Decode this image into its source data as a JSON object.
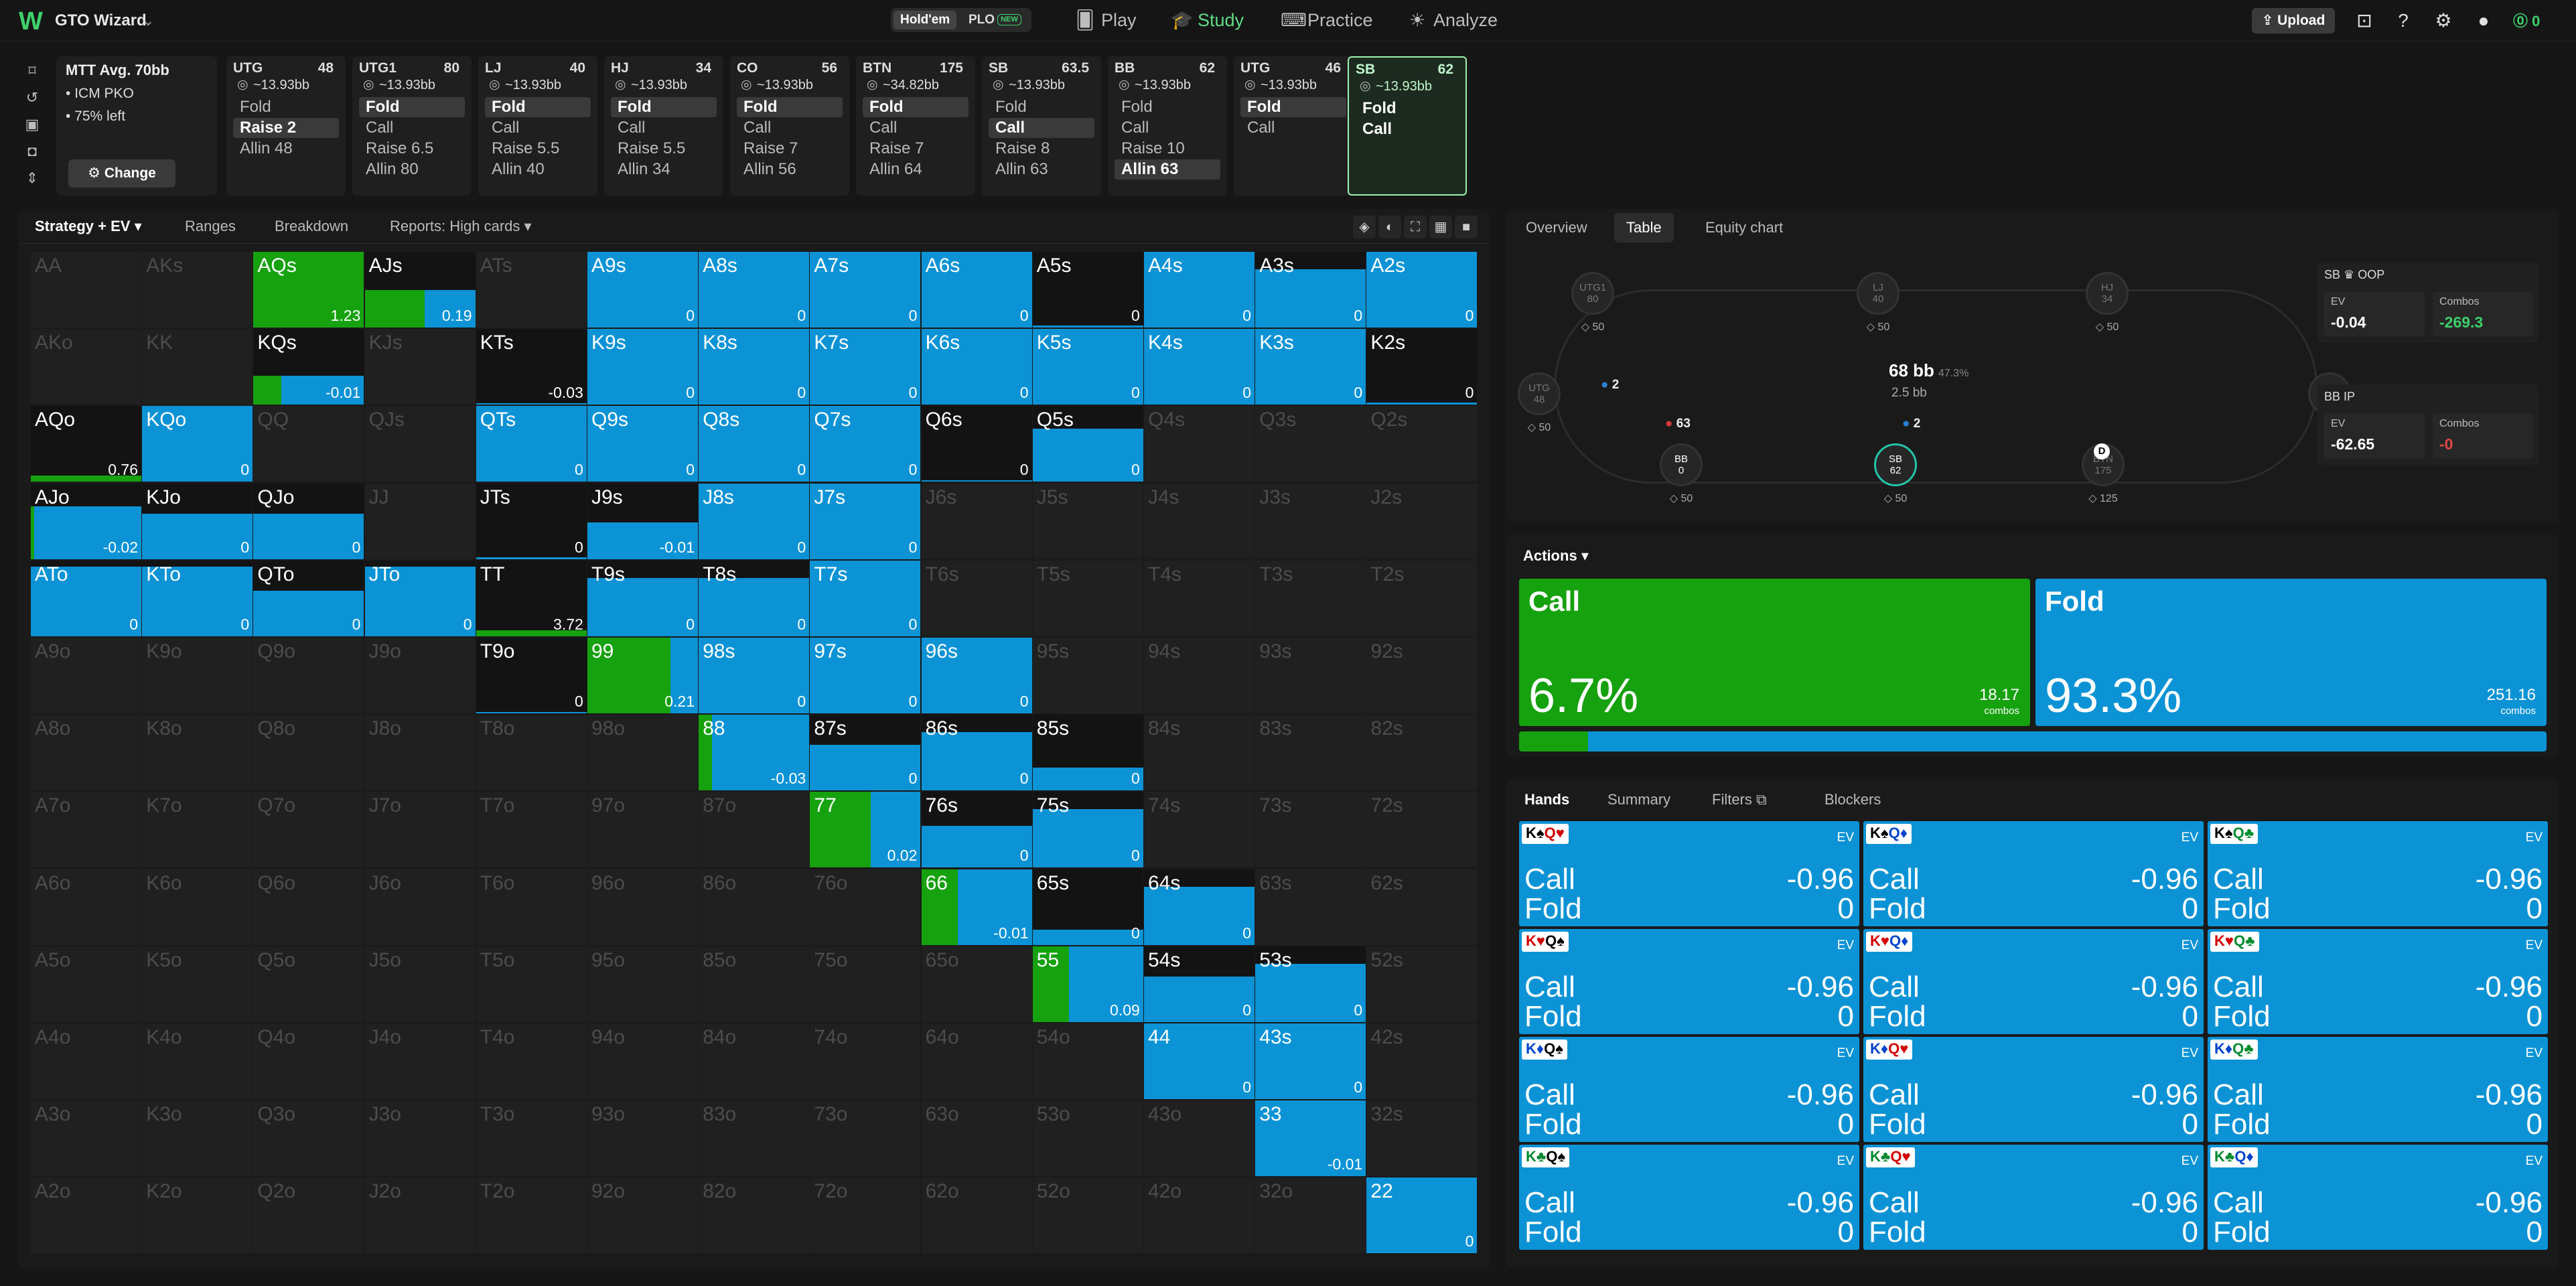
{
  "topbar": {
    "logo": "W",
    "app_name": "GTO Wizard",
    "game_holdem": "Hold'em",
    "game_plo": "PLO",
    "plo_badge": "NEW",
    "nav": [
      {
        "label": "Play",
        "icon": "cards-icon"
      },
      {
        "label": "Study",
        "icon": "graduation-cap-icon"
      },
      {
        "label": "Practice",
        "icon": "gamepad-icon"
      },
      {
        "label": "Analyze",
        "icon": "lightbulb-icon"
      }
    ],
    "upload": "Upload",
    "coins": "0"
  },
  "mtt": {
    "title": "MTT",
    "avg": "Avg. 70bb",
    "line1": "ICM PKO",
    "line2": "75% left",
    "change": "Change"
  },
  "seats": [
    {
      "pos": "UTG",
      "stack": "48",
      "bb": "~13.93bb",
      "actions": [
        "Fold",
        "Raise 2",
        "Allin 48"
      ],
      "sel": 1
    },
    {
      "pos": "UTG1",
      "stack": "80",
      "bb": "~13.93bb",
      "actions": [
        "Fold",
        "Call",
        "Raise 6.5",
        "Allin 80"
      ],
      "sel": 0
    },
    {
      "pos": "LJ",
      "stack": "40",
      "bb": "~13.93bb",
      "actions": [
        "Fold",
        "Call",
        "Raise 5.5",
        "Allin 40"
      ],
      "sel": 0
    },
    {
      "pos": "HJ",
      "stack": "34",
      "bb": "~13.93bb",
      "actions": [
        "Fold",
        "Call",
        "Raise 5.5",
        "Allin 34"
      ],
      "sel": 0
    },
    {
      "pos": "CO",
      "stack": "56",
      "bb": "~13.93bb",
      "actions": [
        "Fold",
        "Call",
        "Raise 7",
        "Allin 56"
      ],
      "sel": 0
    },
    {
      "pos": "BTN",
      "stack": "175",
      "bb": "~34.82bb",
      "actions": [
        "Fold",
        "Call",
        "Raise 7",
        "Allin 64"
      ],
      "sel": 0
    },
    {
      "pos": "SB",
      "stack": "63.5",
      "bb": "~13.93bb",
      "actions": [
        "Fold",
        "Call",
        "Raise 8",
        "Allin 63"
      ],
      "sel": 1
    },
    {
      "pos": "BB",
      "stack": "62",
      "bb": "~13.93bb",
      "actions": [
        "Fold",
        "Call",
        "Raise 10",
        "Allin 63"
      ],
      "sel": 3
    },
    {
      "pos": "UTG",
      "stack": "46",
      "bb": "~13.93bb",
      "actions": [
        "Fold",
        "Call"
      ],
      "sel": 0
    },
    {
      "pos": "SB",
      "stack": "62",
      "bb": "~13.93bb",
      "actions": [
        "Fold",
        "Call"
      ],
      "sel": -1
    }
  ],
  "left_tabs": {
    "strategy": "Strategy + EV",
    "ranges": "Ranges",
    "breakdown": "Breakdown",
    "reports": "Reports: High cards"
  },
  "colors": {
    "call": "#16a10f",
    "fold": "#0c93d6"
  },
  "grid_ranks": [
    "A",
    "K",
    "Q",
    "J",
    "T",
    "9",
    "8",
    "7",
    "6",
    "5",
    "4",
    "3",
    "2"
  ],
  "grid_cells": [
    {
      "hand": "AQs",
      "call": 1.0,
      "ev": "1.23"
    },
    {
      "hand": "AJs",
      "call": 0.54,
      "ev": "0.19",
      "h": 0.5
    },
    {
      "hand": "A9s",
      "call": 0,
      "ev": "0"
    },
    {
      "hand": "A8s",
      "call": 0,
      "ev": "0"
    },
    {
      "hand": "A7s",
      "call": 0,
      "ev": "0"
    },
    {
      "hand": "A6s",
      "call": 0,
      "ev": "0"
    },
    {
      "hand": "A5s",
      "call": 0,
      "ev": "0",
      "h": 0.03
    },
    {
      "hand": "A4s",
      "call": 0,
      "ev": "0"
    },
    {
      "hand": "A3s",
      "call": 0,
      "ev": "0",
      "h": 0.77
    },
    {
      "hand": "A2s",
      "call": 0,
      "ev": "0"
    },
    {
      "hand": "KQs",
      "call": 0.25,
      "ev": "-0.01",
      "h": 0.38
    },
    {
      "hand": "KTs",
      "call": 0,
      "ev": "-0.03",
      "h": 0.02
    },
    {
      "hand": "K9s",
      "call": 0,
      "ev": "0"
    },
    {
      "hand": "K8s",
      "call": 0,
      "ev": "0"
    },
    {
      "hand": "K7s",
      "call": 0,
      "ev": "0"
    },
    {
      "hand": "K6s",
      "call": 0,
      "ev": "0"
    },
    {
      "hand": "K5s",
      "call": 0,
      "ev": "0"
    },
    {
      "hand": "K4s",
      "call": 0,
      "ev": "0"
    },
    {
      "hand": "K3s",
      "call": 0,
      "ev": "0"
    },
    {
      "hand": "K2s",
      "call": 0,
      "ev": "0",
      "h": 0.03
    },
    {
      "hand": "AQo",
      "call": 1.0,
      "ev": "0.76",
      "h": 0.08
    },
    {
      "hand": "KQo",
      "call": 0,
      "ev": "0"
    },
    {
      "hand": "QTs",
      "call": 0,
      "ev": "0"
    },
    {
      "hand": "Q9s",
      "call": 0,
      "ev": "0"
    },
    {
      "hand": "Q8s",
      "call": 0,
      "ev": "0"
    },
    {
      "hand": "Q7s",
      "call": 0,
      "ev": "0"
    },
    {
      "hand": "Q6s",
      "call": 0,
      "ev": "0",
      "h": 0.02
    },
    {
      "hand": "Q5s",
      "call": 0,
      "ev": "0",
      "h": 0.7
    },
    {
      "hand": "AJo",
      "call": 0.03,
      "ev": "-0.02",
      "h": 0.7
    },
    {
      "hand": "KJo",
      "call": 0,
      "ev": "0",
      "h": 0.6
    },
    {
      "hand": "QJo",
      "call": 0,
      "ev": "0",
      "h": 0.6
    },
    {
      "hand": "JTs",
      "call": 0,
      "ev": "0",
      "h": 0.02
    },
    {
      "hand": "J9s",
      "call": 0,
      "ev": "-0.01",
      "h": 0.48
    },
    {
      "hand": "J8s",
      "call": 0,
      "ev": "0"
    },
    {
      "hand": "J7s",
      "call": 0,
      "ev": "0"
    },
    {
      "hand": "ATo",
      "call": 0,
      "ev": "0",
      "h": 0.92
    },
    {
      "hand": "KTo",
      "call": 0,
      "ev": "0",
      "h": 0.92
    },
    {
      "hand": "QTo",
      "call": 0,
      "ev": "0",
      "h": 0.6
    },
    {
      "hand": "JTo",
      "call": 0,
      "ev": "0",
      "h": 0.92
    },
    {
      "hand": "TT",
      "call": 1.0,
      "ev": "3.72",
      "h": 0.08
    },
    {
      "hand": "T9s",
      "call": 0,
      "ev": "0",
      "h": 0.77
    },
    {
      "hand": "T8s",
      "call": 0,
      "ev": "0",
      "h": 0.77
    },
    {
      "hand": "T7s",
      "call": 0,
      "ev": "0"
    },
    {
      "hand": "T9o",
      "call": 0,
      "ev": "0",
      "h": 0.02
    },
    {
      "hand": "99",
      "call": 0.75,
      "ev": "0.21"
    },
    {
      "hand": "98s",
      "call": 0,
      "ev": "0"
    },
    {
      "hand": "97s",
      "call": 0,
      "ev": "0"
    },
    {
      "hand": "96s",
      "call": 0,
      "ev": "0"
    },
    {
      "hand": "88",
      "call": 0.12,
      "ev": "-0.03"
    },
    {
      "hand": "87s",
      "call": 0,
      "ev": "0",
      "h": 0.6
    },
    {
      "hand": "86s",
      "call": 0,
      "ev": "0",
      "h": 0.77
    },
    {
      "hand": "85s",
      "call": 0,
      "ev": "0",
      "h": 0.3
    },
    {
      "hand": "77",
      "call": 0.55,
      "ev": "0.02"
    },
    {
      "hand": "76s",
      "call": 0,
      "ev": "0",
      "h": 0.55
    },
    {
      "hand": "75s",
      "call": 0,
      "ev": "0",
      "h": 0.77
    },
    {
      "hand": "66",
      "call": 0.33,
      "ev": "-0.01"
    },
    {
      "hand": "65s",
      "call": 0,
      "ev": "0",
      "h": 0.2
    },
    {
      "hand": "64s",
      "call": 0,
      "ev": "0",
      "h": 0.77
    },
    {
      "hand": "55",
      "call": 0.33,
      "ev": "0.09"
    },
    {
      "hand": "54s",
      "call": 0,
      "ev": "0",
      "h": 0.6
    },
    {
      "hand": "53s",
      "call": 0,
      "ev": "0",
      "h": 0.77
    },
    {
      "hand": "44",
      "call": 0,
      "ev": "0"
    },
    {
      "hand": "43s",
      "call": 0,
      "ev": "0"
    },
    {
      "hand": "33",
      "call": 0,
      "ev": "-0.01"
    },
    {
      "hand": "22",
      "call": 0,
      "ev": "0"
    }
  ],
  "right_tabs": {
    "overview": "Overview",
    "table": "Table",
    "equity": "Equity chart"
  },
  "table": {
    "seats": [
      {
        "name": "UTG1",
        "stack": "80",
        "chips": "50"
      },
      {
        "name": "LJ",
        "stack": "40",
        "chips": "50"
      },
      {
        "name": "HJ",
        "stack": "34",
        "chips": "50"
      },
      {
        "name": "UTG",
        "stack": "48",
        "chips": "50"
      },
      {
        "name": "CO",
        "stack": "56",
        "chips": "50"
      },
      {
        "name": "BB",
        "stack": "0",
        "chips": "50"
      },
      {
        "name": "SB",
        "stack": "62",
        "chips": "50"
      },
      {
        "name": "BTN",
        "stack": "175",
        "chips": "125"
      }
    ],
    "pot": "68 bb",
    "pot_pct": "47.3%",
    "pot_sub": "2.5 bb",
    "bet_utg": "2",
    "bet_bb": "63",
    "bet_sb": "2",
    "dealer": "D"
  },
  "sb_box": {
    "title": "SB",
    "tag": "OOP",
    "ev_label": "EV",
    "ev": "-0.04",
    "combos_label": "Combos",
    "combos": "-269.3"
  },
  "bb_box": {
    "title": "BB",
    "tag": "IP",
    "ev_label": "EV",
    "ev": "-62.65",
    "combos_label": "Combos",
    "combos": "-0"
  },
  "actions": {
    "dropdown": "Actions",
    "call": {
      "name": "Call",
      "pct": "6.7%",
      "combos": "18.17",
      "combos_label": "combos",
      "frac": 0.067
    },
    "fold": {
      "name": "Fold",
      "pct": "93.3%",
      "combos": "251.16",
      "combos_label": "combos",
      "frac": 0.933
    }
  },
  "hands_tabs": {
    "hands": "Hands",
    "summary": "Summary",
    "filters": "Filters",
    "blockers": "Blockers"
  },
  "hands": [
    {
      "c1": "K",
      "s1": "♠",
      "k1": "blk",
      "c2": "Q",
      "s2": "♥",
      "k2": "red"
    },
    {
      "c1": "K",
      "s1": "♠",
      "k1": "blk",
      "c2": "Q",
      "s2": "♦",
      "k2": "blu"
    },
    {
      "c1": "K",
      "s1": "♠",
      "k1": "blk",
      "c2": "Q",
      "s2": "♣",
      "k2": "grn"
    },
    {
      "c1": "K",
      "s1": "♥",
      "k1": "red",
      "c2": "Q",
      "s2": "♠",
      "k2": "blk"
    },
    {
      "c1": "K",
      "s1": "♥",
      "k1": "red",
      "c2": "Q",
      "s2": "♦",
      "k2": "blu"
    },
    {
      "c1": "K",
      "s1": "♥",
      "k1": "red",
      "c2": "Q",
      "s2": "♣",
      "k2": "grn"
    },
    {
      "c1": "K",
      "s1": "♦",
      "k1": "blu",
      "c2": "Q",
      "s2": "♠",
      "k2": "blk"
    },
    {
      "c1": "K",
      "s1": "♦",
      "k1": "blu",
      "c2": "Q",
      "s2": "♥",
      "k2": "red"
    },
    {
      "c1": "K",
      "s1": "♦",
      "k1": "blu",
      "c2": "Q",
      "s2": "♣",
      "k2": "grn"
    },
    {
      "c1": "K",
      "s1": "♣",
      "k1": "grn",
      "c2": "Q",
      "s2": "♠",
      "k2": "blk"
    },
    {
      "c1": "K",
      "s1": "♣",
      "k1": "grn",
      "c2": "Q",
      "s2": "♥",
      "k2": "red"
    },
    {
      "c1": "K",
      "s1": "♣",
      "k1": "grn",
      "c2": "Q",
      "s2": "♦",
      "k2": "blu"
    }
  ],
  "hand_row": {
    "ev_label": "EV",
    "call": "Call",
    "call_ev": "-0.96",
    "fold": "Fold",
    "fold_ev": "0"
  }
}
